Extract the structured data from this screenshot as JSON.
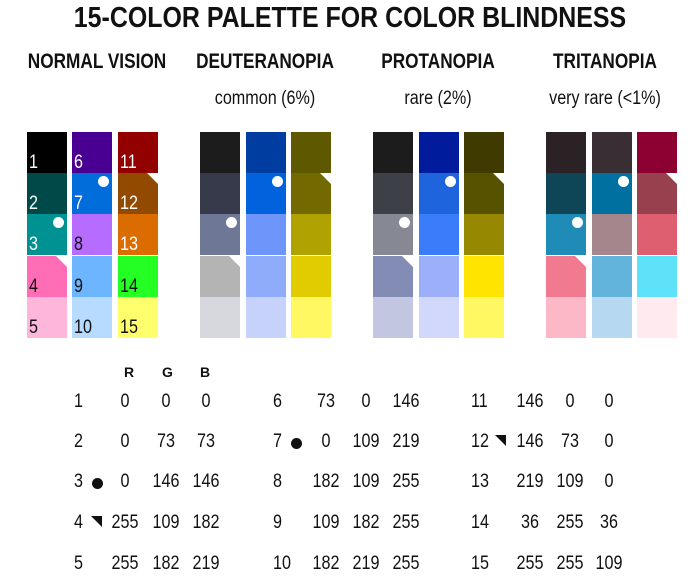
{
  "title": "15-COLOR PALETTE FOR COLOR BLINDNESS",
  "sections": [
    {
      "title": "NORMAL VISION",
      "subtitle": ""
    },
    {
      "title": "DEUTERANOPIA",
      "subtitle": "common (6%)"
    },
    {
      "title": "PROTANOPIA",
      "subtitle": "rare (2%)"
    },
    {
      "title": "TRITANOPIA",
      "subtitle": "very rare (<1%)"
    }
  ],
  "palette": [
    {
      "n": "1",
      "rgb": [
        0,
        0,
        0
      ],
      "hex": "#000000",
      "marker": ""
    },
    {
      "n": "2",
      "rgb": [
        0,
        73,
        73
      ],
      "hex": "#004949",
      "marker": ""
    },
    {
      "n": "3",
      "rgb": [
        0,
        146,
        146
      ],
      "hex": "#009292",
      "marker": "dot"
    },
    {
      "n": "4",
      "rgb": [
        255,
        109,
        182
      ],
      "hex": "#ff6db6",
      "marker": "triangle"
    },
    {
      "n": "5",
      "rgb": [
        255,
        182,
        219
      ],
      "hex": "#ffb6db",
      "marker": ""
    },
    {
      "n": "6",
      "rgb": [
        73,
        0,
        146
      ],
      "hex": "#490092",
      "marker": ""
    },
    {
      "n": "7",
      "rgb": [
        0,
        109,
        219
      ],
      "hex": "#006ddb",
      "marker": "dot"
    },
    {
      "n": "8",
      "rgb": [
        182,
        109,
        255
      ],
      "hex": "#b66dff",
      "marker": ""
    },
    {
      "n": "9",
      "rgb": [
        109,
        182,
        255
      ],
      "hex": "#6db6ff",
      "marker": ""
    },
    {
      "n": "10",
      "rgb": [
        182,
        219,
        255
      ],
      "hex": "#b6dbff",
      "marker": ""
    },
    {
      "n": "11",
      "rgb": [
        146,
        0,
        0
      ],
      "hex": "#920000",
      "marker": ""
    },
    {
      "n": "12",
      "rgb": [
        146,
        73,
        0
      ],
      "hex": "#924900",
      "marker": "triangle"
    },
    {
      "n": "13",
      "rgb": [
        219,
        109,
        0
      ],
      "hex": "#db6d00",
      "marker": ""
    },
    {
      "n": "14",
      "rgb": [
        36,
        255,
        36
      ],
      "hex": "#24ff24",
      "marker": ""
    },
    {
      "n": "15",
      "rgb": [
        255,
        255,
        109
      ],
      "hex": "#ffff6d",
      "marker": ""
    }
  ],
  "simulated": {
    "deuteranopia": [
      [
        "#1c1c1c",
        "#363a4a",
        "#6e7896",
        "#b4b4b4",
        "#d6d8de"
      ],
      [
        "#003da0",
        "#0062dc",
        "#6e96fa",
        "#8eacfa",
        "#c6d2fa"
      ],
      [
        "#5e5800",
        "#726a00",
        "#b0a200",
        "#e0cc00",
        "#fff862"
      ]
    ],
    "protanopia": [
      [
        "#1c1c1c",
        "#3e4048",
        "#868894",
        "#828cb4",
        "#c2c6e0"
      ],
      [
        "#001c9c",
        "#1e64dc",
        "#3a7cfa",
        "#9cb0fa",
        "#d2d8fc"
      ],
      [
        "#3e3a00",
        "#565200",
        "#968800",
        "#ffe400",
        "#fff862"
      ]
    ],
    "tritanopia": [
      [
        "#2a2224",
        "#0e4658",
        "#1e8cb6",
        "#f27a90",
        "#fcb8c6"
      ],
      [
        "#382e34",
        "#0070a0",
        "#a4868c",
        "#62b4dc",
        "#b6d8f0"
      ],
      [
        "#8c0032",
        "#98404e",
        "#de6070",
        "#5ee2fa",
        "#ffeaf0"
      ]
    ]
  },
  "table": {
    "headers": [
      "R",
      "G",
      "B"
    ]
  },
  "colors": {
    "marker_light": "#ffffff",
    "marker_dark": "#111111",
    "text": "#111111"
  }
}
